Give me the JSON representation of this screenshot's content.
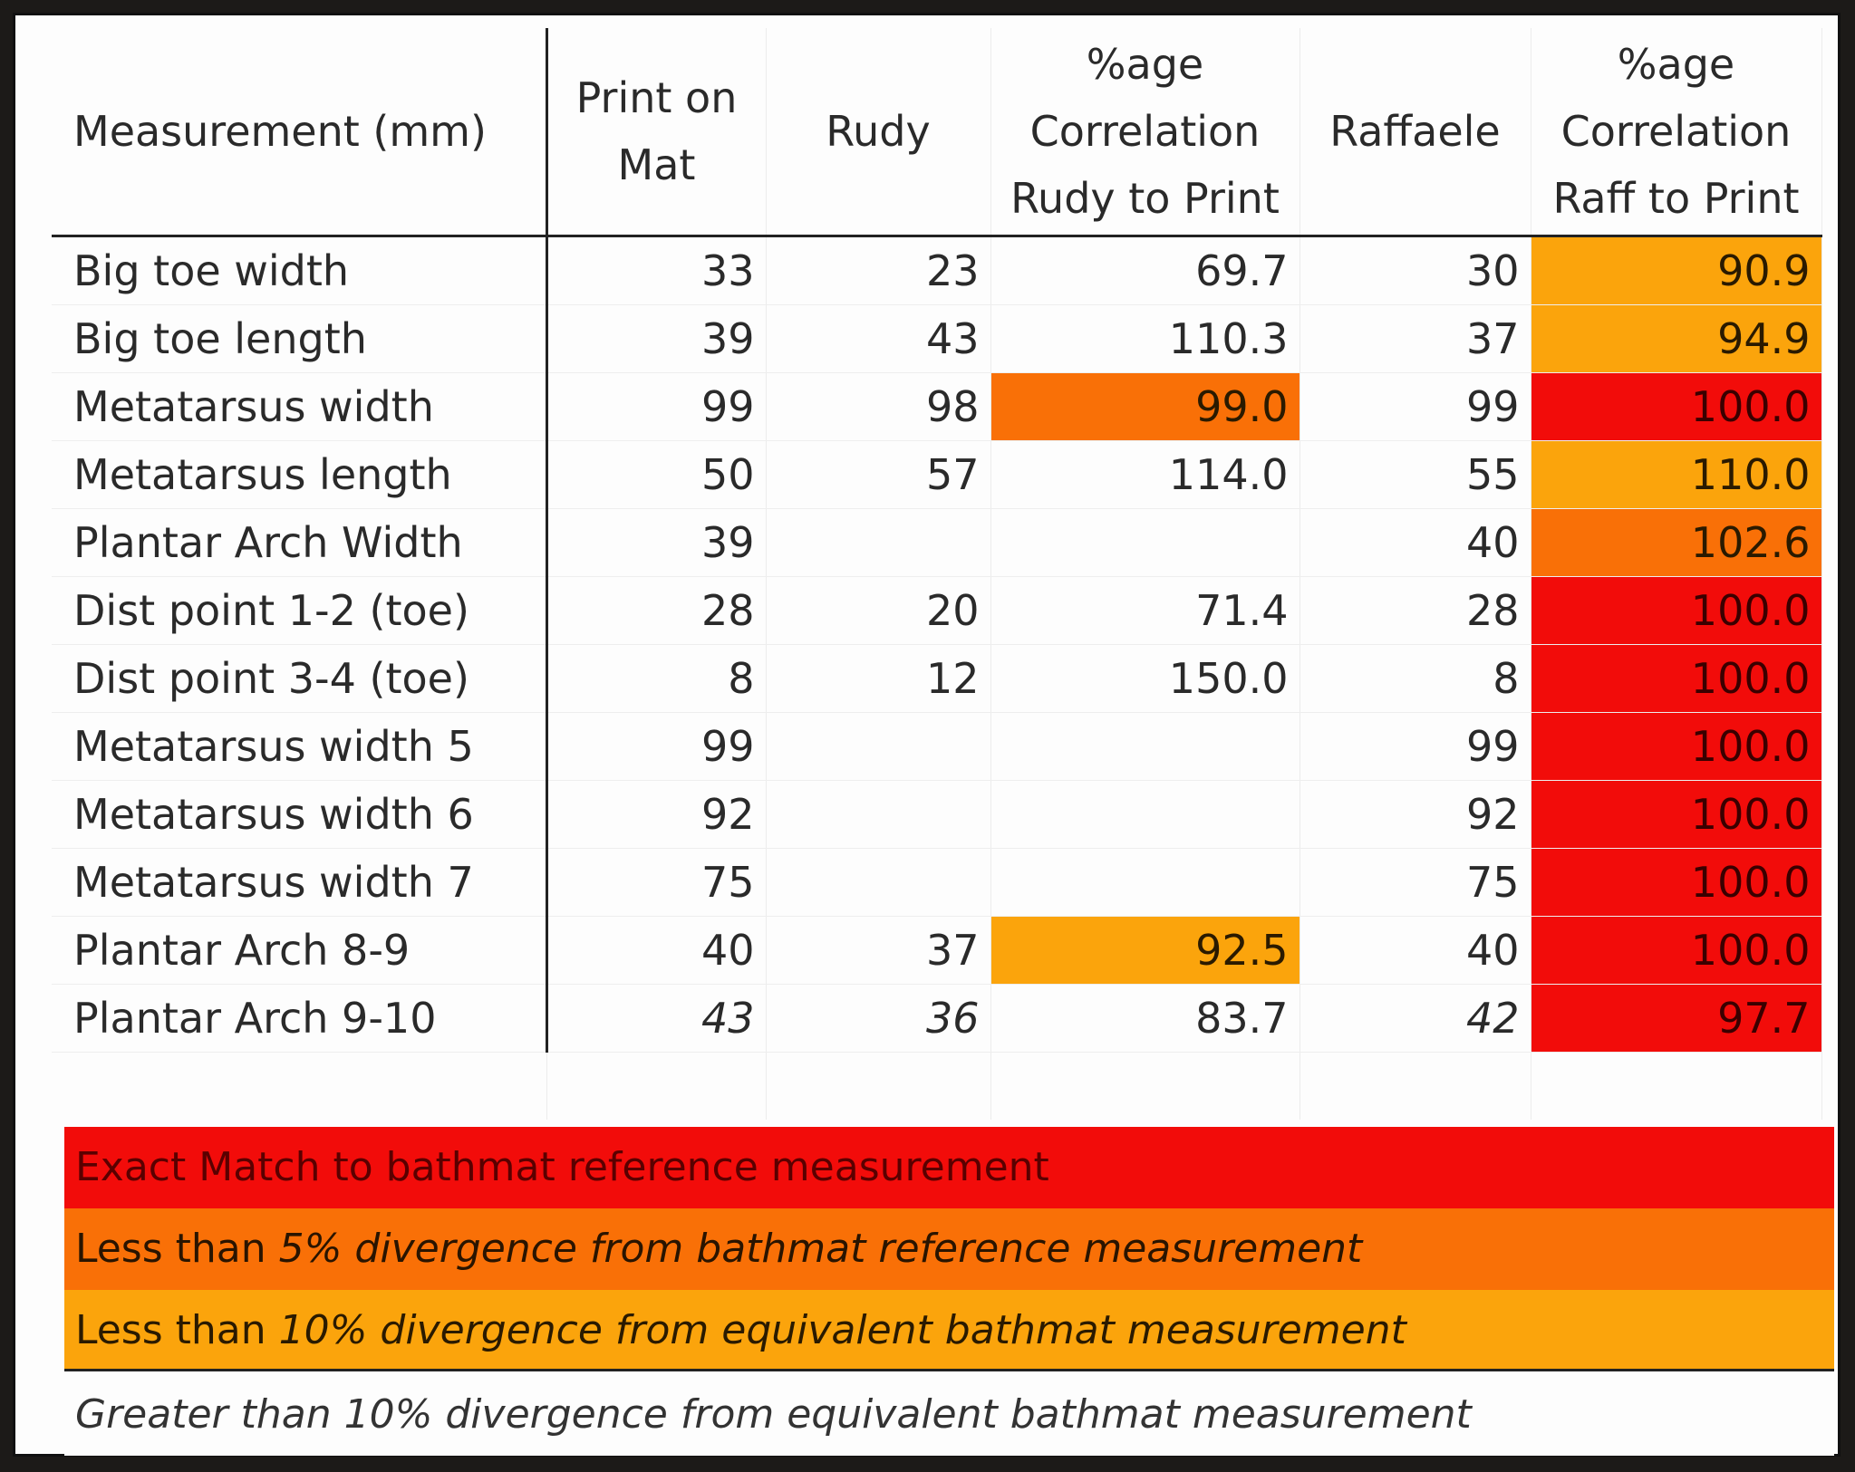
{
  "table": {
    "headers": [
      "Measurement (mm)",
      "Print on Mat",
      "Rudy",
      "%age Correlation Rudy to Print",
      "Raffaele",
      "%age Correlation Raff to Print"
    ],
    "rows": [
      {
        "label": "Big toe width",
        "print": "33",
        "rudy": "23",
        "rudy_pct": "69.7",
        "raff": "30",
        "raff_pct": "90.9"
      },
      {
        "label": "Big toe length",
        "print": "39",
        "rudy": "43",
        "rudy_pct": "110.3",
        "raff": "37",
        "raff_pct": "94.9"
      },
      {
        "label": "Metatarsus width",
        "print": "99",
        "rudy": "98",
        "rudy_pct": "99.0",
        "raff": "99",
        "raff_pct": "100.0"
      },
      {
        "label": "Metatarsus length",
        "print": "50",
        "rudy": "57",
        "rudy_pct": "114.0",
        "raff": "55",
        "raff_pct": "110.0"
      },
      {
        "label": "Plantar Arch Width",
        "print": "39",
        "rudy": "",
        "rudy_pct": "",
        "raff": "40",
        "raff_pct": "102.6"
      },
      {
        "label": "Dist point 1-2 (toe)",
        "print": "28",
        "rudy": "20",
        "rudy_pct": "71.4",
        "raff": "28",
        "raff_pct": "100.0"
      },
      {
        "label": "Dist point 3-4 (toe)",
        "print": "8",
        "rudy": "12",
        "rudy_pct": "150.0",
        "raff": "8",
        "raff_pct": "100.0"
      },
      {
        "label": "Metatarsus width 5",
        "print": "99",
        "rudy": "",
        "rudy_pct": "",
        "raff": "99",
        "raff_pct": "100.0"
      },
      {
        "label": "Metatarsus width 6",
        "print": "92",
        "rudy": "",
        "rudy_pct": "",
        "raff": "92",
        "raff_pct": "100.0"
      },
      {
        "label": "Metatarsus width 7",
        "print": "75",
        "rudy": "",
        "rudy_pct": "",
        "raff": "75",
        "raff_pct": "100.0"
      },
      {
        "label": "Plantar Arch 8-9",
        "print": "40",
        "rudy": "37",
        "rudy_pct": "92.5",
        "raff": "40",
        "raff_pct": "100.0"
      },
      {
        "label": "Plantar Arch 9-10",
        "print": "43",
        "rudy": "36",
        "rudy_pct": "83.7",
        "raff": "42",
        "raff_pct": "97.7"
      }
    ]
  },
  "highlights": {
    "rudy_pct": [
      "",
      "",
      "dorange",
      "",
      "",
      "",
      "",
      "",
      "",
      "",
      "orange",
      ""
    ],
    "raff_pct": [
      "orange",
      "orange",
      "red",
      "orange",
      "dorange",
      "red",
      "red",
      "red",
      "red",
      "red",
      "red",
      "red"
    ]
  },
  "legend": {
    "exact": "Exact Match to bathmat reference measurement",
    "lt5_plain": "Less than",
    "lt5_italic": "5% divergence from bathmat reference measurement",
    "lt10_plain": "Less than",
    "lt10_italic": "10% divergence from equivalent bathmat measurement",
    "gt10": "Greater than 10% divergence from equivalent bathmat measurement"
  },
  "colors": {
    "red": "#f20c0a",
    "dark_orange": "#f97007",
    "orange": "#fba40c"
  }
}
